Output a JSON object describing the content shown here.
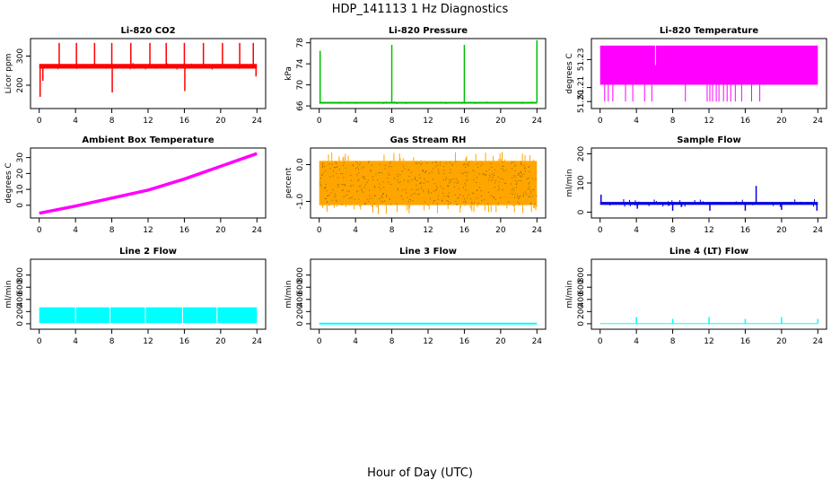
{
  "figure": {
    "title": "HDP_141113  1 Hz Diagnostics",
    "xlabel": "Hour of Day (UTC)"
  },
  "chart_data": [
    {
      "type": "line",
      "title": "Li-820 CO2",
      "ylabel": "Licor ppm",
      "color": "#ff0000",
      "ylim": [
        120,
        360
      ],
      "yticks": [
        200,
        300
      ],
      "xlim": [
        0,
        24
      ],
      "xticks": [
        0,
        4,
        8,
        12,
        16,
        20,
        24
      ],
      "style": "spiky",
      "baseline": 265,
      "noise": 8,
      "spikes": [
        [
          0.1,
          160
        ],
        [
          0.4,
          215
        ],
        [
          2.2,
          345
        ],
        [
          4.1,
          345
        ],
        [
          6.1,
          345
        ],
        [
          8.0,
          345
        ],
        [
          8.05,
          175
        ],
        [
          10.1,
          345
        ],
        [
          12.2,
          345
        ],
        [
          14.0,
          345
        ],
        [
          16.0,
          345
        ],
        [
          16.05,
          180
        ],
        [
          18.1,
          345
        ],
        [
          20.2,
          345
        ],
        [
          22.1,
          345
        ],
        [
          23.6,
          345
        ],
        [
          23.9,
          230
        ]
      ]
    },
    {
      "type": "line",
      "title": "Li-820 Pressure",
      "ylabel": "kPa",
      "color": "#00c000",
      "ylim": [
        65.5,
        78.8
      ],
      "yticks": [
        66,
        70,
        74,
        78
      ],
      "xlim": [
        0,
        24
      ],
      "xticks": [
        0,
        4,
        8,
        12,
        16,
        20,
        24
      ],
      "style": "spiky",
      "baseline": 66.6,
      "noise": 0.1,
      "spikes": [
        [
          0.1,
          76.5
        ],
        [
          8.0,
          77.6
        ],
        [
          16.0,
          77.6
        ],
        [
          24.0,
          78.5
        ]
      ]
    },
    {
      "type": "line",
      "title": "Li-820 Temperature",
      "ylabel": "degrees C",
      "color": "#ff00ff",
      "ylim": [
        51.195,
        51.245
      ],
      "yticks": [
        51.2,
        51.21,
        51.23
      ],
      "ytick_labels": [
        "51.20",
        "51.21",
        "51.23"
      ],
      "xlim": [
        0,
        24
      ],
      "xticks": [
        0,
        4,
        8,
        12,
        16,
        20,
        24
      ],
      "style": "band",
      "band": [
        51.212,
        51.24
      ],
      "dips": [
        0.5,
        0.9,
        1.4,
        2.8,
        3.6,
        4.9,
        5.7,
        9.4,
        11.8,
        12.1,
        12.4,
        12.8,
        13.1,
        13.6,
        14.0,
        14.4,
        14.9,
        15.6,
        16.7,
        17.6
      ],
      "dip_to": 51.2,
      "notch": [
        6.1,
        51.226
      ]
    },
    {
      "type": "line",
      "title": "Ambient Box Temperature",
      "ylabel": "degrees C",
      "color": "#ff00ff",
      "ylim": [
        -8,
        36
      ],
      "yticks": [
        0,
        10,
        20,
        30
      ],
      "xlim": [
        0,
        24
      ],
      "xticks": [
        0,
        4,
        8,
        12,
        16,
        20,
        24
      ],
      "style": "smooth",
      "thick": 3.5,
      "points": [
        [
          0,
          -5
        ],
        [
          4,
          -0.5
        ],
        [
          8,
          4.5
        ],
        [
          12,
          9.5
        ],
        [
          16,
          16.5
        ],
        [
          20,
          24.5
        ],
        [
          24,
          32.5
        ]
      ]
    },
    {
      "type": "line",
      "title": "Gas Stream RH",
      "ylabel": "percent",
      "color": "#ffa500",
      "ylim": [
        -1.45,
        0.45
      ],
      "yticks": [
        -1.0,
        0.0
      ],
      "ytick_labels": [
        "-1.0",
        "0.0"
      ],
      "xlim": [
        0,
        24
      ],
      "xticks": [
        0,
        4,
        8,
        12,
        16,
        20,
        24
      ],
      "style": "noiseband",
      "band": [
        -1.1,
        0.1
      ],
      "extreme": [
        -1.35,
        0.35
      ]
    },
    {
      "type": "line",
      "title": "Sample Flow",
      "ylabel": "ml/min",
      "color": "#0000e0",
      "ylim": [
        -20,
        220
      ],
      "yticks": [
        0,
        100,
        200
      ],
      "xlim": [
        0,
        24
      ],
      "xticks": [
        0,
        4,
        8,
        12,
        16,
        20,
        24
      ],
      "style": "noisy",
      "baseline": 30,
      "noise": 5,
      "spikes": [
        [
          0.1,
          60
        ],
        [
          4.1,
          12
        ],
        [
          8.0,
          5
        ],
        [
          12.1,
          5
        ],
        [
          16.0,
          5
        ],
        [
          17.2,
          90
        ],
        [
          20.0,
          8
        ],
        [
          23.9,
          5
        ]
      ]
    },
    {
      "type": "line",
      "title": "Line 2 Flow",
      "ylabel": "ml/min",
      "color": "#00ffff",
      "ylim": [
        -90,
        1060
      ],
      "yticks": [
        0,
        200,
        400,
        600,
        800
      ],
      "xlim": [
        0,
        24
      ],
      "xticks": [
        0,
        4,
        8,
        12,
        16,
        20,
        24
      ],
      "style": "block",
      "band": [
        10,
        270
      ],
      "gaps": [
        4.0,
        7.8,
        11.7,
        15.8,
        19.6
      ],
      "tail": [
        20,
        23.9,
        10,
        250
      ]
    },
    {
      "type": "line",
      "title": "Line 3 Flow",
      "ylabel": "ml/min",
      "color": "#00ffff",
      "ylim": [
        -90,
        1060
      ],
      "yticks": [
        0,
        200,
        400,
        600,
        800
      ],
      "xlim": [
        0,
        24
      ],
      "xticks": [
        0,
        4,
        8,
        12,
        16,
        20,
        24
      ],
      "style": "flat",
      "baseline": 2,
      "thick": 2
    },
    {
      "type": "line",
      "title": "Line 4 (LT) Flow",
      "ylabel": "ml/min",
      "color": "#00ffff",
      "ylim": [
        -90,
        1060
      ],
      "yticks": [
        0,
        200,
        400,
        600,
        800
      ],
      "xlim": [
        0,
        24
      ],
      "xticks": [
        0,
        4,
        8,
        12,
        16,
        20,
        24
      ],
      "style": "spiky",
      "baseline": 2,
      "noise": 0,
      "spikes": [
        [
          4.0,
          110
        ],
        [
          8.0,
          80
        ],
        [
          12.0,
          110
        ],
        [
          16.0,
          80
        ],
        [
          20.0,
          110
        ],
        [
          24.0,
          80
        ]
      ]
    }
  ]
}
